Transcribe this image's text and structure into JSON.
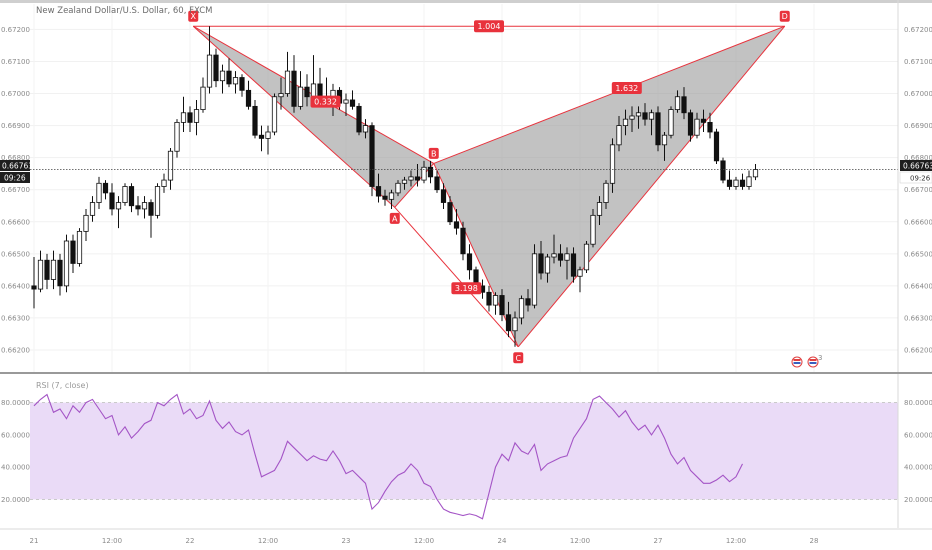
{
  "chart_title": "New Zealand Dollar/U.S. Dollar, 60, FXCM",
  "current_price": "0.66763",
  "countdown": "09:26",
  "rsi_title": "RSI (7, close)",
  "colors": {
    "pattern_line": "#e8323c",
    "pattern_fill": "#9a9a9a",
    "rsi_line": "#a455c6",
    "rsi_band": "#eadbf7",
    "candle_up": "#ffffff",
    "candle_down": "#111111",
    "price_tag": "#1e1e1e"
  },
  "chart_data": [
    {
      "type": "candlestick",
      "title": "New Zealand Dollar/U.S. Dollar, 60, FXCM",
      "price_axis_ticks": [
        "0.67200",
        "0.67100",
        "0.67000",
        "0.66900",
        "0.66800",
        "0.66700",
        "0.66600",
        "0.66500",
        "0.66400",
        "0.66300",
        "0.66200"
      ],
      "ylim": [
        0.66175,
        0.67245
      ],
      "time_axis_ticks": [
        "21",
        "12:00",
        "22",
        "12:00",
        "23",
        "12:00",
        "24",
        "12:00",
        "27",
        "12:00",
        "28"
      ],
      "time_tick_bar_index": [
        0,
        12,
        24,
        36,
        48,
        60,
        72,
        84,
        96,
        108,
        120
      ],
      "harmonic_pattern": {
        "points": [
          {
            "label": "X",
            "bar": 24.5,
            "price": 0.6721
          },
          {
            "label": "A",
            "bar": 55.5,
            "price": 0.66645
          },
          {
            "label": "B",
            "bar": 61.5,
            "price": 0.66782
          },
          {
            "label": "C",
            "bar": 74.5,
            "price": 0.6621
          },
          {
            "label": "D",
            "bar": 115.5,
            "price": 0.6721
          }
        ],
        "ratios": [
          "1.004",
          "0.332",
          "1.632",
          "3.198"
        ]
      },
      "candles": [
        {
          "o": 0.664,
          "h": 0.6649,
          "l": 0.6633,
          "c": 0.6639
        },
        {
          "o": 0.6639,
          "h": 0.6651,
          "l": 0.6638,
          "c": 0.6648
        },
        {
          "o": 0.6648,
          "h": 0.665,
          "l": 0.6639,
          "c": 0.6642
        },
        {
          "o": 0.6642,
          "h": 0.6651,
          "l": 0.6639,
          "c": 0.6648
        },
        {
          "o": 0.6648,
          "h": 0.665,
          "l": 0.6637,
          "c": 0.664
        },
        {
          "o": 0.664,
          "h": 0.6656,
          "l": 0.6638,
          "c": 0.6654
        },
        {
          "o": 0.6654,
          "h": 0.6656,
          "l": 0.6644,
          "c": 0.6647
        },
        {
          "o": 0.6647,
          "h": 0.6658,
          "l": 0.6646,
          "c": 0.6657
        },
        {
          "o": 0.6657,
          "h": 0.6664,
          "l": 0.6654,
          "c": 0.6662
        },
        {
          "o": 0.6662,
          "h": 0.6668,
          "l": 0.666,
          "c": 0.6666
        },
        {
          "o": 0.6666,
          "h": 0.6674,
          "l": 0.6664,
          "c": 0.6672
        },
        {
          "o": 0.6672,
          "h": 0.6673,
          "l": 0.6667,
          "c": 0.6669
        },
        {
          "o": 0.6669,
          "h": 0.6672,
          "l": 0.6662,
          "c": 0.6664
        },
        {
          "o": 0.6664,
          "h": 0.6668,
          "l": 0.6658,
          "c": 0.6666
        },
        {
          "o": 0.6666,
          "h": 0.6672,
          "l": 0.6665,
          "c": 0.6671
        },
        {
          "o": 0.6671,
          "h": 0.6672,
          "l": 0.6663,
          "c": 0.6665
        },
        {
          "o": 0.6665,
          "h": 0.6668,
          "l": 0.6662,
          "c": 0.6664
        },
        {
          "o": 0.6664,
          "h": 0.6668,
          "l": 0.6661,
          "c": 0.6666
        },
        {
          "o": 0.6666,
          "h": 0.6667,
          "l": 0.6655,
          "c": 0.6662
        },
        {
          "o": 0.6662,
          "h": 0.6672,
          "l": 0.6661,
          "c": 0.6671
        },
        {
          "o": 0.6671,
          "h": 0.6675,
          "l": 0.6669,
          "c": 0.6673
        },
        {
          "o": 0.6673,
          "h": 0.6683,
          "l": 0.667,
          "c": 0.6682
        },
        {
          "o": 0.6682,
          "h": 0.6692,
          "l": 0.668,
          "c": 0.6691
        },
        {
          "o": 0.6691,
          "h": 0.6699,
          "l": 0.6688,
          "c": 0.6694
        },
        {
          "o": 0.6694,
          "h": 0.6696,
          "l": 0.6688,
          "c": 0.6691
        },
        {
          "o": 0.6691,
          "h": 0.6698,
          "l": 0.6687,
          "c": 0.6695
        },
        {
          "o": 0.6695,
          "h": 0.6705,
          "l": 0.6694,
          "c": 0.6702
        },
        {
          "o": 0.6702,
          "h": 0.6721,
          "l": 0.67,
          "c": 0.6712
        },
        {
          "o": 0.6712,
          "h": 0.6714,
          "l": 0.6702,
          "c": 0.6704
        },
        {
          "o": 0.6704,
          "h": 0.6709,
          "l": 0.67,
          "c": 0.6707
        },
        {
          "o": 0.6707,
          "h": 0.6711,
          "l": 0.6702,
          "c": 0.6703
        },
        {
          "o": 0.6703,
          "h": 0.6707,
          "l": 0.67,
          "c": 0.6705
        },
        {
          "o": 0.6705,
          "h": 0.6706,
          "l": 0.6699,
          "c": 0.6701
        },
        {
          "o": 0.6701,
          "h": 0.6704,
          "l": 0.6695,
          "c": 0.6696
        },
        {
          "o": 0.6696,
          "h": 0.6698,
          "l": 0.6686,
          "c": 0.6687
        },
        {
          "o": 0.6687,
          "h": 0.669,
          "l": 0.6682,
          "c": 0.6686
        },
        {
          "o": 0.6686,
          "h": 0.669,
          "l": 0.6681,
          "c": 0.6688
        },
        {
          "o": 0.6688,
          "h": 0.67,
          "l": 0.6687,
          "c": 0.6699
        },
        {
          "o": 0.6699,
          "h": 0.6705,
          "l": 0.6695,
          "c": 0.67
        },
        {
          "o": 0.67,
          "h": 0.6713,
          "l": 0.6699,
          "c": 0.6707
        },
        {
          "o": 0.6707,
          "h": 0.6712,
          "l": 0.6694,
          "c": 0.6696
        },
        {
          "o": 0.6696,
          "h": 0.6707,
          "l": 0.6695,
          "c": 0.6702
        },
        {
          "o": 0.6702,
          "h": 0.6706,
          "l": 0.6696,
          "c": 0.6699
        },
        {
          "o": 0.6699,
          "h": 0.6712,
          "l": 0.6697,
          "c": 0.6703
        },
        {
          "o": 0.6703,
          "h": 0.6708,
          "l": 0.6696,
          "c": 0.6698
        },
        {
          "o": 0.6698,
          "h": 0.6705,
          "l": 0.6696,
          "c": 0.6697
        },
        {
          "o": 0.6697,
          "h": 0.6703,
          "l": 0.6693,
          "c": 0.6701
        },
        {
          "o": 0.6701,
          "h": 0.6702,
          "l": 0.6695,
          "c": 0.6697
        },
        {
          "o": 0.6697,
          "h": 0.67,
          "l": 0.6693,
          "c": 0.6698
        },
        {
          "o": 0.6698,
          "h": 0.6701,
          "l": 0.6695,
          "c": 0.6696
        },
        {
          "o": 0.6696,
          "h": 0.6697,
          "l": 0.6687,
          "c": 0.6688
        },
        {
          "o": 0.6688,
          "h": 0.6692,
          "l": 0.6686,
          "c": 0.669
        },
        {
          "o": 0.669,
          "h": 0.6691,
          "l": 0.6668,
          "c": 0.6671
        },
        {
          "o": 0.6671,
          "h": 0.6675,
          "l": 0.6666,
          "c": 0.6668
        },
        {
          "o": 0.6668,
          "h": 0.667,
          "l": 0.6665,
          "c": 0.6667
        },
        {
          "o": 0.6667,
          "h": 0.667,
          "l": 0.6664,
          "c": 0.6669
        },
        {
          "o": 0.6669,
          "h": 0.6673,
          "l": 0.6668,
          "c": 0.6672
        },
        {
          "o": 0.6672,
          "h": 0.6674,
          "l": 0.667,
          "c": 0.6673
        },
        {
          "o": 0.6673,
          "h": 0.6676,
          "l": 0.6671,
          "c": 0.6674
        },
        {
          "o": 0.6674,
          "h": 0.6678,
          "l": 0.6671,
          "c": 0.6673
        },
        {
          "o": 0.6673,
          "h": 0.6679,
          "l": 0.6672,
          "c": 0.6677
        },
        {
          "o": 0.6677,
          "h": 0.6679,
          "l": 0.6672,
          "c": 0.6674
        },
        {
          "o": 0.6674,
          "h": 0.6676,
          "l": 0.6669,
          "c": 0.667
        },
        {
          "o": 0.667,
          "h": 0.6672,
          "l": 0.6664,
          "c": 0.6666
        },
        {
          "o": 0.6666,
          "h": 0.6668,
          "l": 0.6659,
          "c": 0.666
        },
        {
          "o": 0.666,
          "h": 0.6664,
          "l": 0.6656,
          "c": 0.6658
        },
        {
          "o": 0.6658,
          "h": 0.666,
          "l": 0.6648,
          "c": 0.665
        },
        {
          "o": 0.665,
          "h": 0.6653,
          "l": 0.6642,
          "c": 0.6645
        },
        {
          "o": 0.6645,
          "h": 0.6646,
          "l": 0.6639,
          "c": 0.664
        },
        {
          "o": 0.664,
          "h": 0.6642,
          "l": 0.6636,
          "c": 0.6638
        },
        {
          "o": 0.6638,
          "h": 0.664,
          "l": 0.6632,
          "c": 0.6634
        },
        {
          "o": 0.6634,
          "h": 0.6638,
          "l": 0.6631,
          "c": 0.6637
        },
        {
          "o": 0.6637,
          "h": 0.6639,
          "l": 0.6629,
          "c": 0.6631
        },
        {
          "o": 0.6631,
          "h": 0.6635,
          "l": 0.6624,
          "c": 0.6626
        },
        {
          "o": 0.6626,
          "h": 0.6632,
          "l": 0.6621,
          "c": 0.663
        },
        {
          "o": 0.663,
          "h": 0.6637,
          "l": 0.6628,
          "c": 0.6636
        },
        {
          "o": 0.6636,
          "h": 0.6639,
          "l": 0.6632,
          "c": 0.6634
        },
        {
          "o": 0.6634,
          "h": 0.6653,
          "l": 0.6633,
          "c": 0.665
        },
        {
          "o": 0.665,
          "h": 0.6654,
          "l": 0.6642,
          "c": 0.6644
        },
        {
          "o": 0.6644,
          "h": 0.665,
          "l": 0.6641,
          "c": 0.6649
        },
        {
          "o": 0.6649,
          "h": 0.6656,
          "l": 0.6647,
          "c": 0.665
        },
        {
          "o": 0.665,
          "h": 0.6653,
          "l": 0.6646,
          "c": 0.6648
        },
        {
          "o": 0.6648,
          "h": 0.6652,
          "l": 0.6642,
          "c": 0.665
        },
        {
          "o": 0.665,
          "h": 0.6652,
          "l": 0.6641,
          "c": 0.6643
        },
        {
          "o": 0.6643,
          "h": 0.6646,
          "l": 0.6638,
          "c": 0.6645
        },
        {
          "o": 0.6645,
          "h": 0.6654,
          "l": 0.6644,
          "c": 0.6653
        },
        {
          "o": 0.6653,
          "h": 0.6664,
          "l": 0.6652,
          "c": 0.6662
        },
        {
          "o": 0.6662,
          "h": 0.6668,
          "l": 0.6659,
          "c": 0.6666
        },
        {
          "o": 0.6666,
          "h": 0.6673,
          "l": 0.6664,
          "c": 0.6672
        },
        {
          "o": 0.6672,
          "h": 0.6686,
          "l": 0.6669,
          "c": 0.6684
        },
        {
          "o": 0.6684,
          "h": 0.6693,
          "l": 0.6682,
          "c": 0.669
        },
        {
          "o": 0.669,
          "h": 0.6695,
          "l": 0.6687,
          "c": 0.6692
        },
        {
          "o": 0.6692,
          "h": 0.6696,
          "l": 0.6688,
          "c": 0.6693
        },
        {
          "o": 0.6693,
          "h": 0.6696,
          "l": 0.6689,
          "c": 0.6694
        },
        {
          "o": 0.6694,
          "h": 0.6697,
          "l": 0.669,
          "c": 0.6692
        },
        {
          "o": 0.6692,
          "h": 0.6695,
          "l": 0.6687,
          "c": 0.6694
        },
        {
          "o": 0.6694,
          "h": 0.6696,
          "l": 0.6682,
          "c": 0.6684
        },
        {
          "o": 0.6684,
          "h": 0.6688,
          "l": 0.6679,
          "c": 0.6687
        },
        {
          "o": 0.6687,
          "h": 0.6696,
          "l": 0.6686,
          "c": 0.6695
        },
        {
          "o": 0.6695,
          "h": 0.6701,
          "l": 0.6694,
          "c": 0.6699
        },
        {
          "o": 0.6699,
          "h": 0.6702,
          "l": 0.6692,
          "c": 0.6694
        },
        {
          "o": 0.6694,
          "h": 0.6695,
          "l": 0.6685,
          "c": 0.6687
        },
        {
          "o": 0.6687,
          "h": 0.6694,
          "l": 0.6686,
          "c": 0.6692
        },
        {
          "o": 0.6692,
          "h": 0.6695,
          "l": 0.6688,
          "c": 0.6691
        },
        {
          "o": 0.6691,
          "h": 0.6694,
          "l": 0.6686,
          "c": 0.6688
        },
        {
          "o": 0.6688,
          "h": 0.6689,
          "l": 0.6678,
          "c": 0.6679
        },
        {
          "o": 0.6679,
          "h": 0.668,
          "l": 0.6672,
          "c": 0.6673
        },
        {
          "o": 0.6673,
          "h": 0.6676,
          "l": 0.667,
          "c": 0.6671
        },
        {
          "o": 0.6671,
          "h": 0.6674,
          "l": 0.667,
          "c": 0.6673
        },
        {
          "o": 0.6673,
          "h": 0.6675,
          "l": 0.667,
          "c": 0.6671
        },
        {
          "o": 0.6671,
          "h": 0.6676,
          "l": 0.667,
          "c": 0.6674
        },
        {
          "o": 0.6674,
          "h": 0.6678,
          "l": 0.6673,
          "c": 0.66763
        }
      ]
    },
    {
      "type": "line",
      "title": "RSI (7, close)",
      "ylim": [
        6,
        94
      ],
      "y_axis_ticks": [
        "80.0000",
        "60.0000",
        "40.0000",
        "20.0000"
      ],
      "band_levels": [
        20,
        80
      ],
      "series": [
        {
          "values": [
            78,
            82,
            85,
            74,
            76,
            70,
            78,
            74,
            80,
            82,
            76,
            70,
            72,
            60,
            65,
            58,
            62,
            67,
            69,
            80,
            78,
            82,
            85,
            73,
            76,
            70,
            72,
            81,
            69,
            64,
            68,
            62,
            60,
            63,
            48,
            34,
            36,
            38,
            45,
            56,
            52,
            48,
            44,
            47,
            45,
            44,
            50,
            44,
            36,
            38,
            34,
            30,
            14,
            18,
            25,
            31,
            35,
            37,
            42,
            38,
            30,
            28,
            20,
            14,
            12,
            11,
            10,
            11,
            10,
            8,
            24,
            40,
            48,
            44,
            55,
            50,
            48,
            54,
            38,
            42,
            44,
            46,
            47,
            58,
            64,
            70,
            82,
            84,
            80,
            76,
            71,
            75,
            68,
            63,
            66,
            60,
            66,
            58,
            48,
            42,
            46,
            38,
            34,
            30,
            30,
            32,
            35,
            31,
            34,
            42
          ]
        }
      ]
    }
  ]
}
